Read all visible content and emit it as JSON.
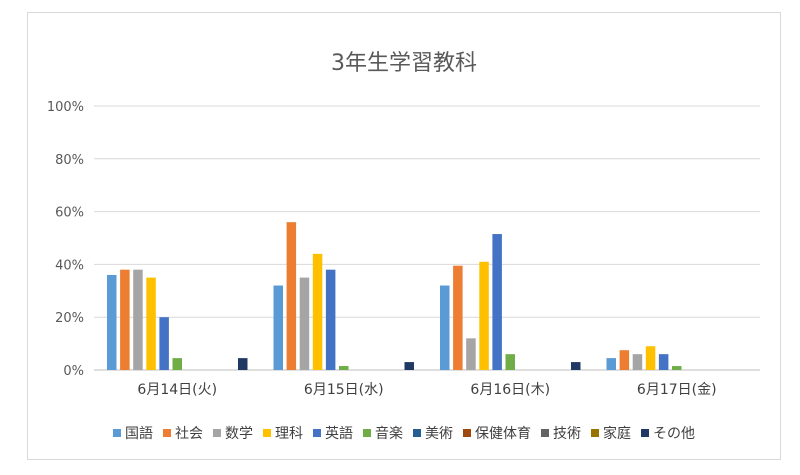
{
  "chart_data": {
    "type": "bar",
    "title": "3年生学習教科",
    "categories": [
      "6月14日(火)",
      "6月15日(水)",
      "6月16日(木)",
      "6月17日(金)"
    ],
    "yticks": [
      "0%",
      "20%",
      "40%",
      "60%",
      "80%",
      "100%"
    ],
    "ylim": [
      0,
      100
    ],
    "grid": true,
    "legend_position": "bottom",
    "series": [
      {
        "name": "国語",
        "color": "#5b9bd5",
        "values": [
          36,
          32,
          32,
          4.5
        ]
      },
      {
        "name": "社会",
        "color": "#ed7d31",
        "values": [
          38,
          56,
          39.5,
          7.5
        ]
      },
      {
        "name": "数学",
        "color": "#a5a5a5",
        "values": [
          38,
          35,
          12,
          6
        ]
      },
      {
        "name": "理科",
        "color": "#ffc000",
        "values": [
          35,
          44,
          41,
          9
        ]
      },
      {
        "name": "英語",
        "color": "#4472c4",
        "values": [
          20,
          38,
          51.5,
          6
        ]
      },
      {
        "name": "音楽",
        "color": "#70ad47",
        "values": [
          4.5,
          1.5,
          6,
          1.5
        ]
      },
      {
        "name": "美術",
        "color": "#255e91",
        "values": [
          0,
          0,
          0,
          0
        ]
      },
      {
        "name": "保健体育",
        "color": "#9e480e",
        "values": [
          0,
          0,
          0,
          0
        ]
      },
      {
        "name": "技術",
        "color": "#636363",
        "values": [
          0,
          0,
          0,
          0
        ]
      },
      {
        "name": "家庭",
        "color": "#997300",
        "values": [
          0,
          0,
          0,
          0
        ]
      },
      {
        "name": "その他",
        "color": "#203864",
        "values": [
          4.5,
          3,
          3,
          0
        ]
      }
    ]
  }
}
